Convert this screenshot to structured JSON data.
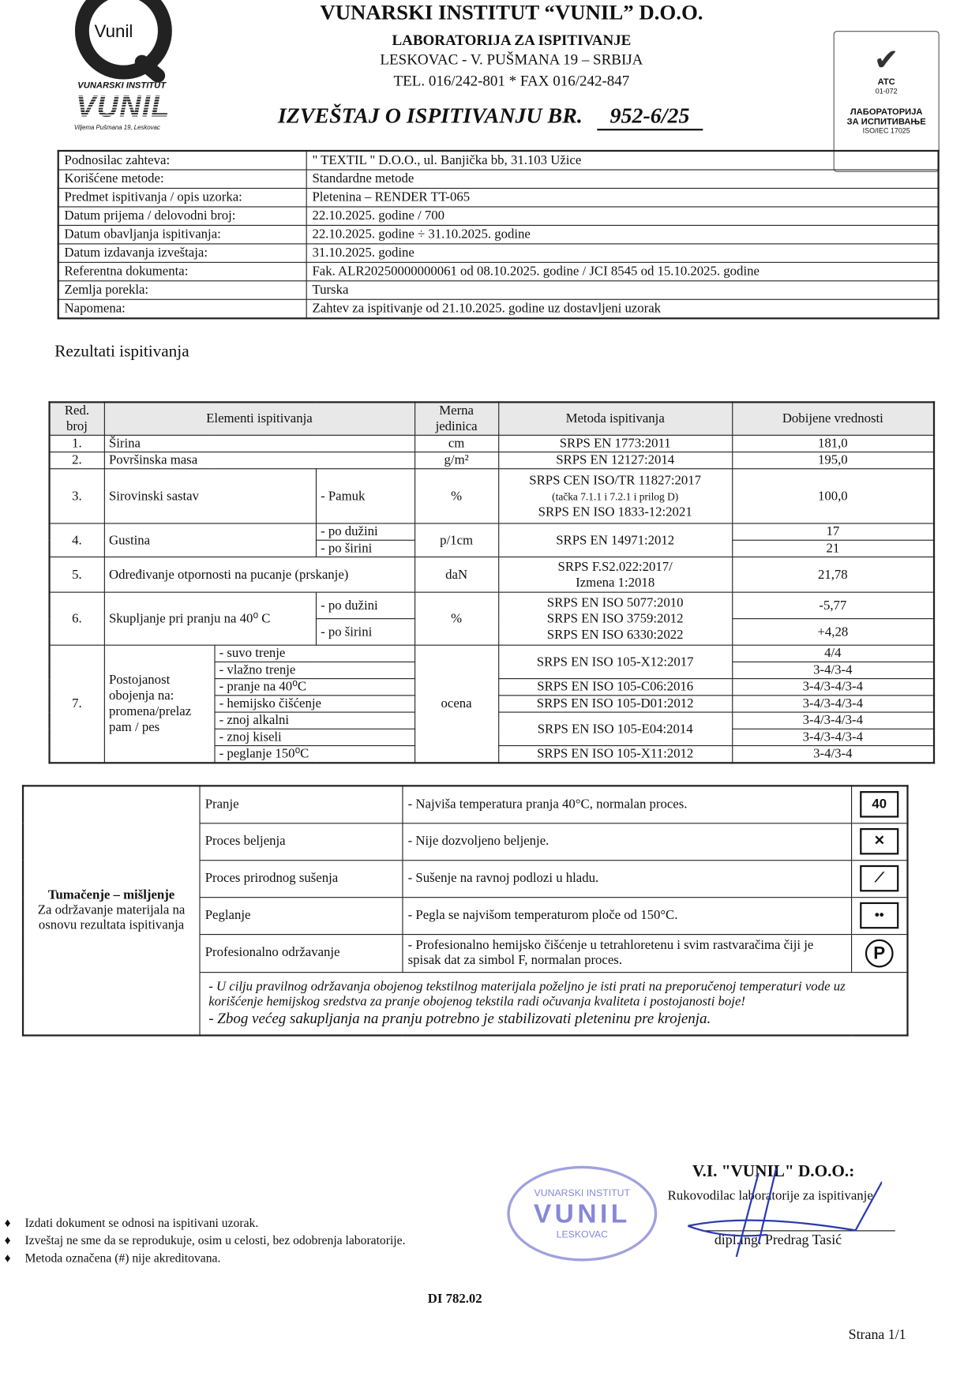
{
  "logo": {
    "monogram": "Vunil",
    "institute": "VUNARSKI INSTITUT",
    "brand": "VUNIL",
    "address": "Viljema Pušmana 19, Leskovac"
  },
  "header": {
    "name": "VUNARSKI INSTITUT “VUNIL” D.O.O.",
    "lab": "LABORATORIJA ZA ISPITIVANJE",
    "address": "LESKOVAC - V. PUŠMANA 19 – SRBIJA",
    "phone": "TEL. 016/242-801 * FAX 016/242-847",
    "report_title": "IZVEŠTAJ O ISPITIVANJU BR.",
    "report_number": "952-6/25"
  },
  "accreditation": {
    "mark": "ATC",
    "code": "01-072",
    "line1": "ЛАБОРАТОРИЈА",
    "line2": "ЗА ИСПИТИВАЊЕ",
    "standard": "ISO/IEC 17025"
  },
  "info": [
    {
      "label": "Podnosilac zahteva:",
      "value": "\" TEXTIL \" D.O.O., ul. Banjička bb, 31.103 Užice"
    },
    {
      "label": "Korišćene metode:",
      "value": "Standardne metode"
    },
    {
      "label": "Predmet ispitivanja / opis uzorka:",
      "value": "Pletenina – RENDER TT-065"
    },
    {
      "label": "Datum prijema / delovodni broj:",
      "value": "22.10.2025. godine    /    700"
    },
    {
      "label": "Datum obavljanja ispitivanja:",
      "value": "22.10.2025. godine ÷ 31.10.2025. godine"
    },
    {
      "label": "Datum izdavanja izveštaja:",
      "value": "31.10.2025. godine"
    },
    {
      "label": "Referentna dokumenta:",
      "value": "Fak. ALR20250000000061 od 08.10.2025. godine / JCI 8545 od 15.10.2025. godine"
    },
    {
      "label": "Zemlja porekla:",
      "value": "Turska"
    },
    {
      "label": "Napomena:",
      "value": "Zahtev za ispitivanje od 21.10.2025. godine uz dostavljeni uzorak"
    }
  ],
  "results_heading": "Rezultati ispitivanja",
  "results": {
    "headers": {
      "no": "Red. broj",
      "element": "Elementi ispitivanja",
      "unit": "Merna jedinica",
      "method": "Metoda ispitivanja",
      "value": "Dobijene vrednosti"
    },
    "r1": {
      "no": "1.",
      "element": "Širina",
      "unit": "cm",
      "method": "SRPS EN 1773:2011",
      "value": "181,0"
    },
    "r2": {
      "no": "2.",
      "element": "Površinska masa",
      "unit": "g/m²",
      "method": "SRPS EN 12127:2014",
      "value": "195,0"
    },
    "r3": {
      "no": "3.",
      "element": "Sirovinski sastav",
      "sub": "- Pamuk",
      "unit": "%",
      "method1": "SRPS CEN ISO/TR 11827:2017",
      "method2": "(tačka 7.1.1 i 7.2.1 i prilog D)",
      "method3": "SRPS EN ISO 1833-12:2021",
      "value": "100,0"
    },
    "r4": {
      "no": "4.",
      "element": "Gustina",
      "sub1": "- po dužini",
      "sub2": "- po širini",
      "unit": "p/1cm",
      "method": "SRPS EN 14971:2012",
      "value1": "17",
      "value2": "21"
    },
    "r5": {
      "no": "5.",
      "element": "Određivanje otpornosti na pucanje (prskanje)",
      "unit": "daN",
      "method1": "SRPS F.S2.022:2017/",
      "method2": "Izmena 1:2018",
      "value": "21,78"
    },
    "r6": {
      "no": "6.",
      "element": "Skupljanje pri pranju na 40⁰ C",
      "sub1": "- po dužini",
      "sub2": "- po širini",
      "unit": "%",
      "method1": "SRPS EN ISO 5077:2010",
      "method2": "SRPS EN ISO 3759:2012",
      "method3": "SRPS EN ISO 6330:2022",
      "value1": "-5,77",
      "value2": "+4,28"
    },
    "r7": {
      "no": "7.",
      "element": "Postojanost obojenja na: promena/prelaz pam / pes",
      "unit": "ocena",
      "items": [
        {
          "sub": "- suvo trenje",
          "value": "4/4"
        },
        {
          "sub": "- vlažno trenje",
          "value": "3-4/3-4"
        },
        {
          "sub": "- pranje na 40⁰C",
          "value": "3-4/3-4/3-4"
        },
        {
          "sub": "- hemijsko čišćenje",
          "value": "3-4/3-4/3-4"
        },
        {
          "sub": "- znoj alkalni",
          "value": "3-4/3-4/3-4"
        },
        {
          "sub": "- znoj kiseli",
          "value": "3-4/3-4/3-4"
        },
        {
          "sub": "- peglanje 150⁰C",
          "value": "3-4/3-4"
        }
      ],
      "methods": [
        "SRPS EN ISO 105-X12:2017",
        "SRPS EN ISO 105-C06:2016",
        "SRPS EN ISO 105-D01:2012",
        "SRPS EN ISO 105-E04:2014",
        "SRPS EN ISO 105-X11:2012"
      ]
    }
  },
  "care": {
    "title": "Tumačenje – mišljenje",
    "subtitle": "Za održavanje materijala na osnovu rezultata ispitivanja",
    "rows": [
      {
        "label": "Pranje",
        "text": "- Najviša temperatura pranja 40°C, normalan proces.",
        "icon": "wash-40-icon",
        "icon_text": "40"
      },
      {
        "label": "Proces beljenja",
        "text": "- Nije dozvoljeno beljenje.",
        "icon": "no-bleach-icon",
        "icon_text": "✕"
      },
      {
        "label": "Proces prirodnog sušenja",
        "text": "- Sušenje na ravnoj podlozi u hladu.",
        "icon": "dry-flat-shade-icon",
        "icon_text": "⟋"
      },
      {
        "label": "Peglanje",
        "text": "- Pegla se najvišom temperaturom ploče od 150°C.",
        "icon": "iron-150-icon",
        "icon_text": "••"
      },
      {
        "label": "Profesionalno održavanje",
        "text": "- Profesionalno hemijsko čišćenje u tetrahloretenu i svim rastvaračima čiji je spisak dat za simbol F, normalan proces.",
        "icon": "professional-clean-p-icon",
        "icon_text": "P"
      }
    ],
    "note1": "- U cilju pravilnog održavanja obojenog tekstilnog materijala poželjno je isti prati na preporučenoj temperaturi vode uz korišćenje hemijskog sredstva za pranje obojenog tekstila radi očuvanja kvaliteta i postojanosti boje!",
    "note2": "- Zbog većeg sakupljanja na pranju potrebno je stabilizovati pleteninu pre krojenja."
  },
  "signature": {
    "company": "V.I. \"VUNIL\" D.O.O.:",
    "role": "Rukovodilac laboratorije za ispitivanje",
    "name": "dipl.ing. Predrag Tasić",
    "stamp_top": "VUNARSKI INSTITUT",
    "stamp_main": "VUNIL",
    "stamp_bottom": "LESKOVAC"
  },
  "notes": [
    "Izdati dokument se odnosi na ispitivani uzorak.",
    "Izveštaj ne sme da se reprodukuje, osim u celosti, bez odobrenja laboratorije.",
    "Metoda označena (#) nije akreditovana."
  ],
  "doc_code": "DI 782.02",
  "page": "Strana 1/1"
}
